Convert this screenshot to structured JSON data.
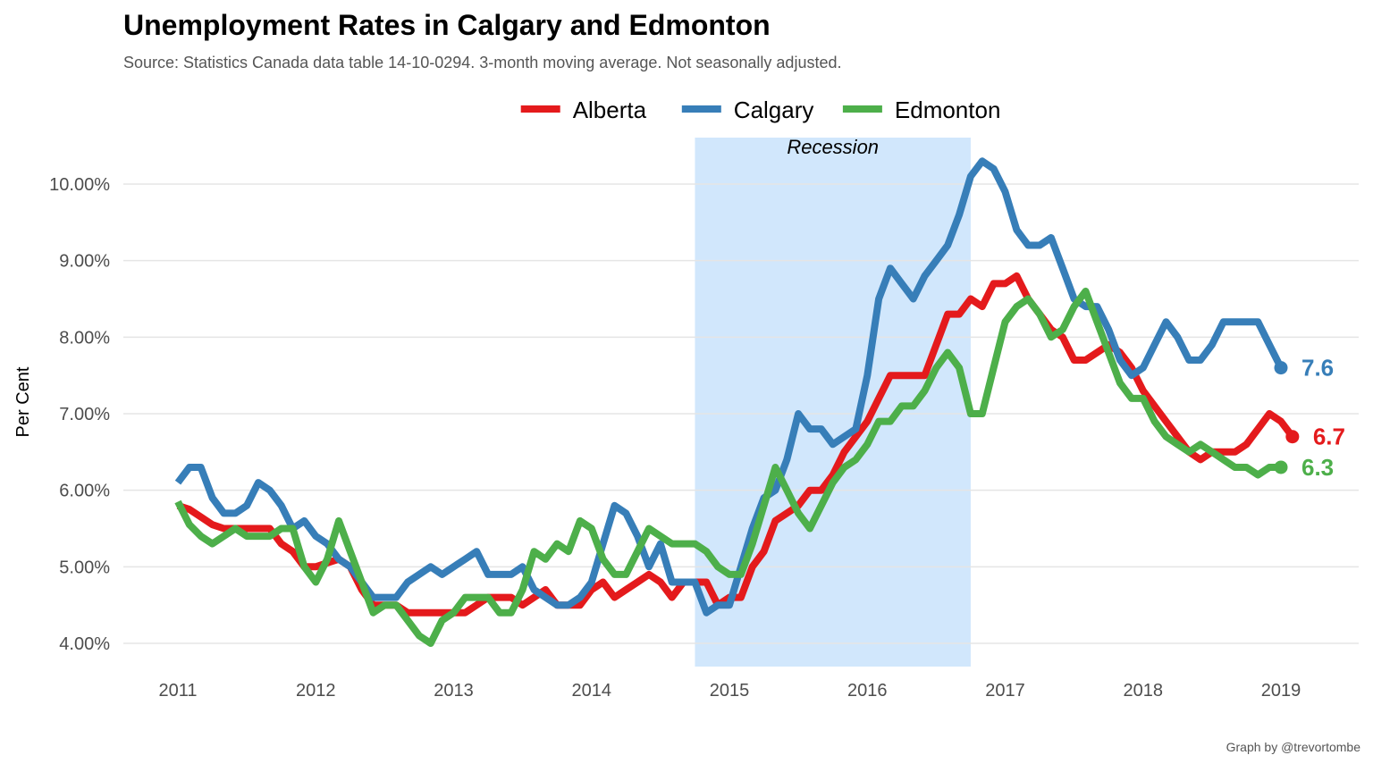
{
  "chart_data": {
    "type": "line",
    "title": "Unemployment Rates in Calgary and Edmonton",
    "subtitle": "Source: Statistics Canada data table 14-10-0294. 3-month moving average. Not seasonally adjusted.",
    "caption": "Graph by @trevortombe",
    "ylabel": "Per Cent",
    "xlabel": "",
    "xlim": [
      2010.6,
      2019.5
    ],
    "ylim": [
      3.7,
      10.6
    ],
    "x_ticks": [
      2011,
      2012,
      2013,
      2014,
      2015,
      2016,
      2017,
      2018,
      2019
    ],
    "x_tick_labels": [
      "2011",
      "2012",
      "2013",
      "2014",
      "2015",
      "2016",
      "2017",
      "2018",
      "2019"
    ],
    "y_ticks": [
      4,
      5,
      6,
      7,
      8,
      9,
      10
    ],
    "y_tick_labels": [
      "4.00%",
      "5.00%",
      "6.00%",
      "7.00%",
      "8.00%",
      "9.00%",
      "10.00%"
    ],
    "grid": true,
    "legend_position": "top-center",
    "recession": {
      "label": "Recession",
      "start": 2014.75,
      "end": 2016.75,
      "color": "#d1e7fc"
    },
    "series": [
      {
        "name": "Alberta",
        "color": "#e41a1c",
        "end_label": "6.7",
        "values": [
          5.8,
          5.75,
          5.65,
          5.55,
          5.5,
          5.5,
          5.5,
          5.5,
          5.5,
          5.3,
          5.2,
          5.0,
          5.0,
          5.05,
          5.1,
          5.0,
          4.7,
          4.5,
          4.5,
          4.5,
          4.4,
          4.4,
          4.4,
          4.4,
          4.4,
          4.4,
          4.5,
          4.6,
          4.6,
          4.6,
          4.5,
          4.6,
          4.7,
          4.5,
          4.5,
          4.5,
          4.7,
          4.8,
          4.6,
          4.7,
          4.8,
          4.9,
          4.8,
          4.6,
          4.8,
          4.8,
          4.8,
          4.5,
          4.6,
          4.6,
          5.0,
          5.2,
          5.6,
          5.7,
          5.8,
          6.0,
          6.0,
          6.2,
          6.5,
          6.7,
          6.9,
          7.2,
          7.5,
          7.5,
          7.5,
          7.5,
          7.9,
          8.3,
          8.3,
          8.5,
          8.4,
          8.7,
          8.7,
          8.8,
          8.5,
          8.3,
          8.1,
          8.0,
          7.7,
          7.7,
          7.8,
          7.9,
          7.8,
          7.6,
          7.3,
          7.1,
          6.9,
          6.7,
          6.5,
          6.4,
          6.5,
          6.5,
          6.5,
          6.6,
          6.8,
          7.0,
          6.9,
          6.7
        ]
      },
      {
        "name": "Calgary",
        "color": "#377eb8",
        "end_label": "7.6",
        "values": [
          6.1,
          6.3,
          6.3,
          5.9,
          5.7,
          5.7,
          5.8,
          6.1,
          6.0,
          5.8,
          5.5,
          5.6,
          5.4,
          5.3,
          5.1,
          5.0,
          4.8,
          4.6,
          4.6,
          4.6,
          4.8,
          4.9,
          5.0,
          4.9,
          5.0,
          5.1,
          5.2,
          4.9,
          4.9,
          4.9,
          5.0,
          4.7,
          4.6,
          4.5,
          4.5,
          4.6,
          4.8,
          5.3,
          5.8,
          5.7,
          5.4,
          5.0,
          5.3,
          4.8,
          4.8,
          4.8,
          4.4,
          4.5,
          4.5,
          5.0,
          5.5,
          5.9,
          6.0,
          6.4,
          7.0,
          6.8,
          6.8,
          6.6,
          6.7,
          6.8,
          7.5,
          8.5,
          8.9,
          8.7,
          8.5,
          8.8,
          9.0,
          9.2,
          9.6,
          10.1,
          10.3,
          10.2,
          9.9,
          9.4,
          9.2,
          9.2,
          9.3,
          8.9,
          8.5,
          8.4,
          8.4,
          8.1,
          7.7,
          7.5,
          7.6,
          7.9,
          8.2,
          8.0,
          7.7,
          7.7,
          7.9,
          8.2,
          8.2,
          8.2,
          8.2,
          7.9,
          7.6
        ]
      },
      {
        "name": "Edmonton",
        "color": "#4daf4a",
        "end_label": "6.3",
        "values": [
          5.85,
          5.55,
          5.4,
          5.3,
          5.4,
          5.5,
          5.4,
          5.4,
          5.4,
          5.5,
          5.5,
          5.0,
          4.8,
          5.1,
          5.6,
          5.2,
          4.8,
          4.4,
          4.5,
          4.5,
          4.3,
          4.1,
          4.0,
          4.3,
          4.4,
          4.6,
          4.6,
          4.6,
          4.4,
          4.4,
          4.7,
          5.2,
          5.1,
          5.3,
          5.2,
          5.6,
          5.5,
          5.1,
          4.9,
          4.9,
          5.2,
          5.5,
          5.4,
          5.3,
          5.3,
          5.3,
          5.2,
          5.0,
          4.9,
          4.9,
          5.3,
          5.8,
          6.3,
          6.0,
          5.7,
          5.5,
          5.8,
          6.1,
          6.3,
          6.4,
          6.6,
          6.9,
          6.9,
          7.1,
          7.1,
          7.3,
          7.6,
          7.8,
          7.6,
          7.0,
          7.0,
          7.6,
          8.2,
          8.4,
          8.5,
          8.3,
          8.0,
          8.1,
          8.4,
          8.6,
          8.2,
          7.8,
          7.4,
          7.2,
          7.2,
          6.9,
          6.7,
          6.6,
          6.5,
          6.6,
          6.5,
          6.4,
          6.3,
          6.3,
          6.2,
          6.3,
          6.3
        ]
      }
    ]
  }
}
